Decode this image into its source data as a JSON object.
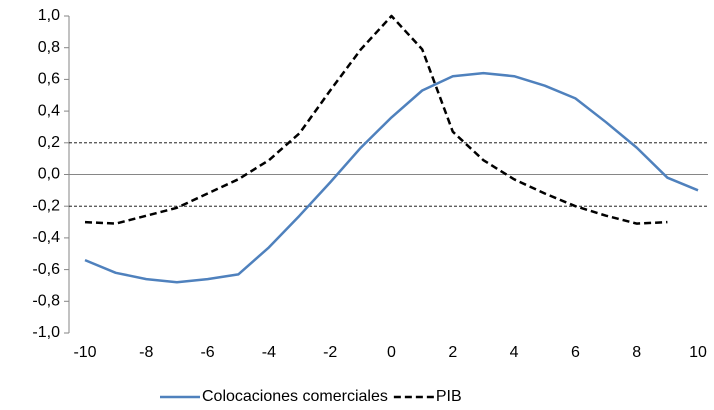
{
  "chart_data": {
    "type": "line",
    "x": [
      -10,
      -9,
      -8,
      -7,
      -6,
      -5,
      -4,
      -3,
      -2,
      -1,
      0,
      1,
      2,
      3,
      4,
      5,
      6,
      7,
      8,
      9,
      10
    ],
    "series": [
      {
        "name": "Colocaciones comerciales",
        "color": "#4f81bd",
        "dash": false,
        "values": [
          -0.54,
          -0.62,
          -0.66,
          -0.68,
          -0.66,
          -0.63,
          -0.46,
          -0.26,
          -0.05,
          0.17,
          0.36,
          0.53,
          0.62,
          0.64,
          0.62,
          0.56,
          0.48,
          0.33,
          0.17,
          -0.02,
          -0.1
        ]
      },
      {
        "name": "PIB",
        "color": "#000000",
        "dash": true,
        "values": [
          -0.3,
          -0.31,
          -0.26,
          -0.21,
          -0.12,
          -0.03,
          0.09,
          0.26,
          0.53,
          0.79,
          1.0,
          0.79,
          0.27,
          0.09,
          -0.03,
          -0.12,
          -0.2,
          -0.26,
          -0.31,
          -0.3,
          null
        ]
      }
    ],
    "xlim": [
      -10,
      10
    ],
    "xticks": [
      -10,
      -8,
      -6,
      -4,
      -2,
      0,
      2,
      4,
      6,
      8,
      10
    ],
    "ylim": [
      -1.0,
      1.0
    ],
    "yticks": [
      {
        "value": 1.0,
        "label": "1,0"
      },
      {
        "value": 0.8,
        "label": "0,8"
      },
      {
        "value": 0.6,
        "label": "0,6"
      },
      {
        "value": 0.4,
        "label": "0,4"
      },
      {
        "value": 0.2,
        "label": "0,2"
      },
      {
        "value": 0.0,
        "label": "0,0"
      },
      {
        "value": -0.2,
        "label": "-0,2"
      },
      {
        "value": -0.4,
        "label": "-0,4"
      },
      {
        "value": -0.6,
        "label": "-0,6"
      },
      {
        "value": -0.8,
        "label": "-0,8"
      },
      {
        "value": -1.0,
        "label": "-1,0"
      }
    ],
    "reference_lines": [
      0.2,
      -0.2
    ],
    "legend": "bottom"
  }
}
